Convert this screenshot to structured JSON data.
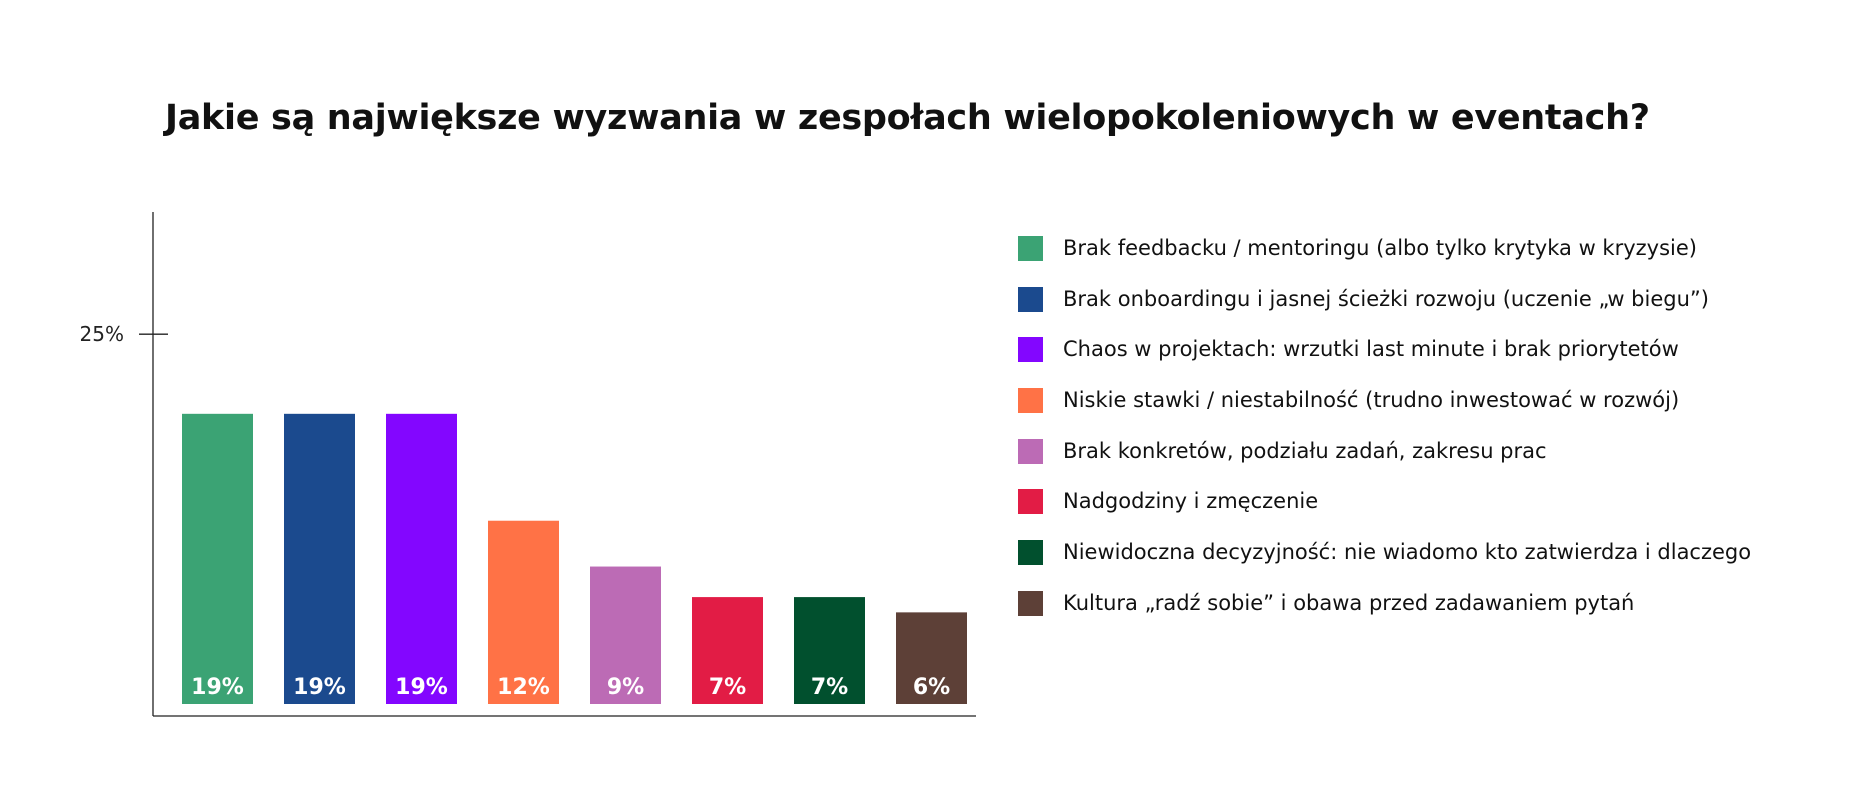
{
  "title": "Jakie są największe wyzwania w zespołach wielopokoleniowych w eventach?",
  "chart_data": {
    "type": "bar",
    "title": "Jakie są największe wyzwania w zespołach wielopokoleniowych w eventach?",
    "xlabel": "",
    "ylabel": "",
    "ylim": [
      0,
      33
    ],
    "yticks": [
      25
    ],
    "ytick_labels": [
      "25%"
    ],
    "grid": false,
    "legend_position": "right",
    "categories": [
      "Brak feedbacku / mentoringu (albo tylko krytyka w kryzysie)",
      "Brak onboardingu i jasnej ścieżki rozwoju (uczenie „w biegu”)",
      "Chaos w projektach: wrzutki last minute i brak priorytetów",
      "Niskie stawki / niestabilność (trudno inwestować w rozwój)",
      "Brak konkretów, podziału zadań, zakresu prac",
      "Nadgodziny i zmęczenie",
      "Niewidoczna decyzyjność: nie wiadomo kto zatwierdza i dlaczego",
      "Kultura „radź sobie” i obawa przed zadawaniem pytań"
    ],
    "values": [
      19,
      19,
      19,
      12,
      9,
      7,
      7,
      6
    ],
    "value_labels": [
      "19%",
      "19%",
      "19%",
      "12%",
      "9%",
      "7%",
      "7%",
      "6%"
    ],
    "colors": [
      "#3BA374",
      "#1B4A8E",
      "#8306FF",
      "#FF7246",
      "#BC6BB5",
      "#E21C45",
      "#01502E",
      "#5D4037"
    ]
  }
}
